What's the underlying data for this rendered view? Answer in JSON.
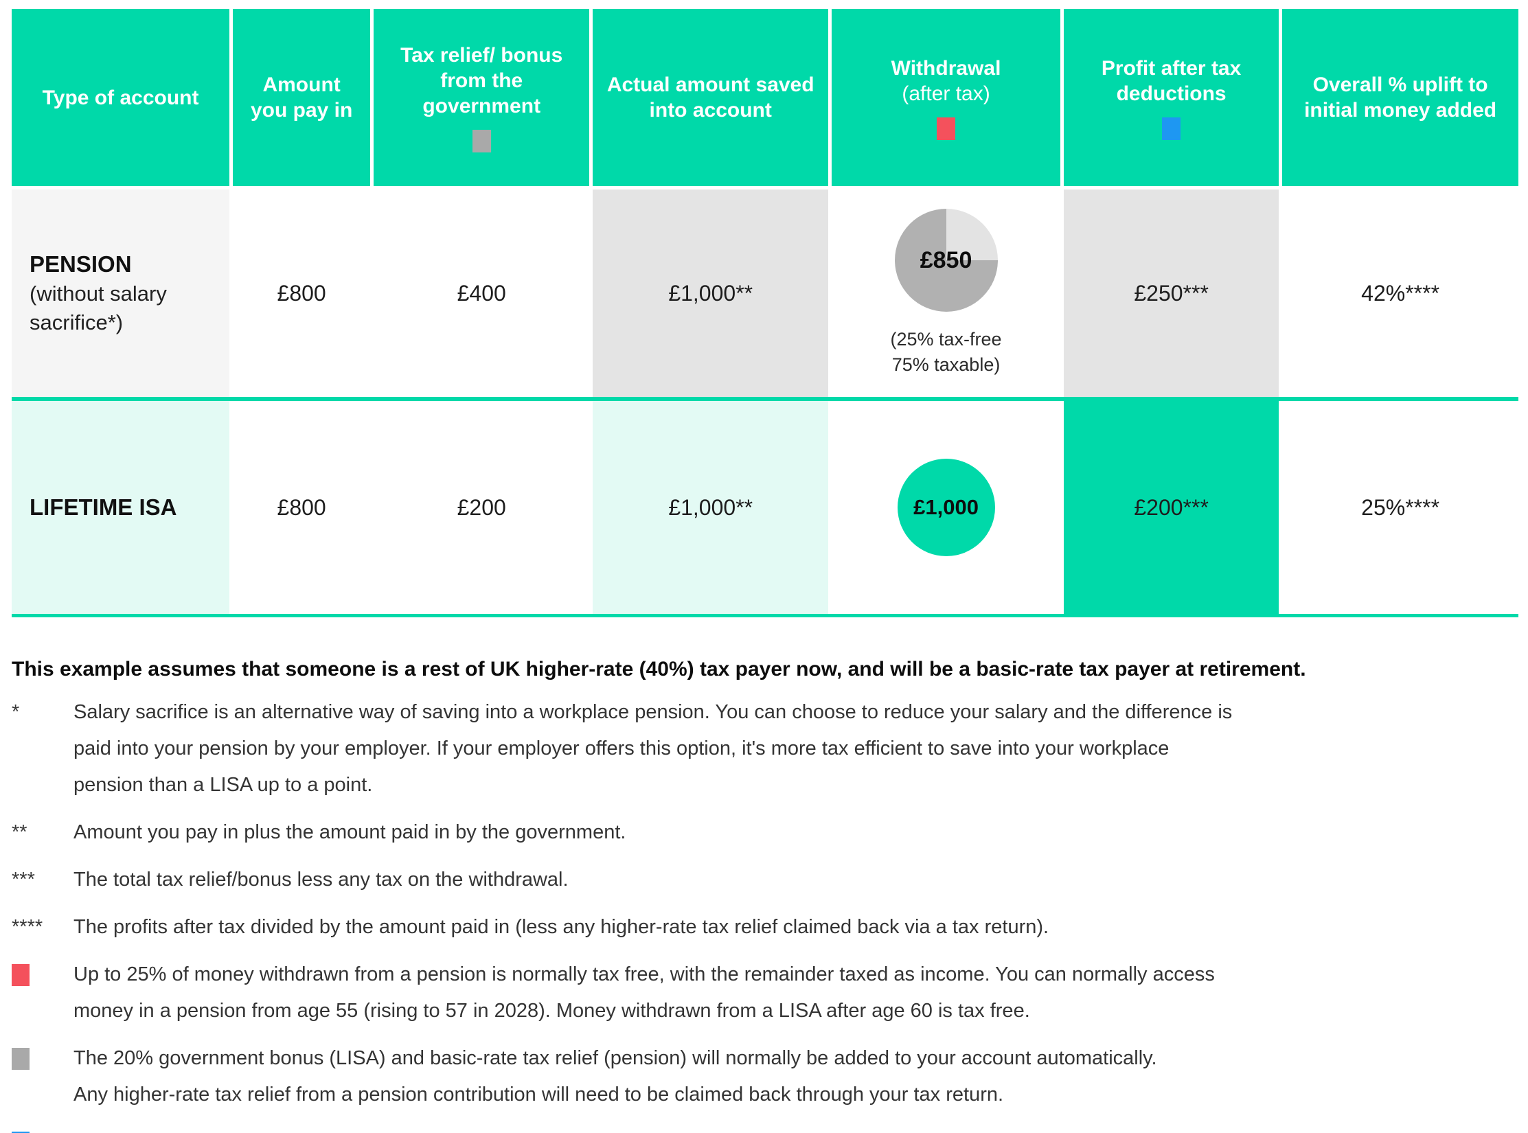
{
  "colors": {
    "teal": "#00D9A9",
    "mint_cell": "#E3FAF4",
    "grey_cell": "#E4E4E4",
    "light_cell": "#F5F5F5",
    "pie_main_grey": "#B1B1B1",
    "pie_light_grey": "#E3E3E3",
    "marker_grey": "#A9A9A9",
    "marker_red": "#F4515C",
    "marker_blue": "#1E97F2"
  },
  "table": {
    "headers": [
      {
        "label": "Type of account"
      },
      {
        "label": "Amount you pay in"
      },
      {
        "label": "Tax relief/ bonus from the government",
        "marker": "grey-square"
      },
      {
        "label": "Actual amount saved into account"
      },
      {
        "label": "Withdrawal",
        "sublabel": "(after tax)",
        "marker": "red-square"
      },
      {
        "label": "Profit after tax deductions",
        "marker": "blue-square"
      },
      {
        "label": "Overall % uplift to initial money added"
      }
    ],
    "pension": {
      "name": "PENSION",
      "name_note": "(without salary sacrifice*)",
      "pay_in": "£800",
      "tax_relief": "£400",
      "actual_saved": "£1,000**",
      "withdrawal": "£850",
      "withdrawal_note": "(25% tax-free 75% taxable)",
      "profit": "£250***",
      "uplift": "42%****"
    },
    "lisa": {
      "name": "LIFETIME ISA",
      "pay_in": "£800",
      "tax_relief": "£200",
      "actual_saved": "£1,000**",
      "withdrawal": "£1,000",
      "profit": "£200***",
      "uplift": "25%****"
    }
  },
  "notes": {
    "intro": "This example assumes that someone is a rest of UK higher-rate (40%) tax payer now, and will be a basic-rate tax payer at retirement.",
    "items": [
      {
        "marker": "*",
        "lines": [
          "Salary sacrifice is an alternative way of saving into a workplace pension. You can choose to reduce your salary and the difference is",
          "paid into your pension by your employer. If your employer offers this option, it's more tax efficient to save into your workplace",
          "pension than a LISA up to a point."
        ]
      },
      {
        "marker": "**",
        "lines": [
          "Amount you pay in plus the amount paid in by the government."
        ]
      },
      {
        "marker": "***",
        "lines": [
          "The total tax relief/bonus less any tax on the withdrawal."
        ]
      },
      {
        "marker": "****",
        "lines": [
          "The profits after tax divided by the amount paid in (less any higher-rate tax relief claimed back via a tax return)."
        ]
      },
      {
        "marker": "red-square",
        "lines": [
          "Up to 25% of money withdrawn from a pension is normally tax free, with the remainder taxed as income. You can normally access",
          "money in a pension from age 55 (rising to 57 in 2028). Money withdrawn from a LISA after age 60 is tax free."
        ]
      },
      {
        "marker": "grey-square",
        "lines": [
          "The 20% government bonus (LISA) and basic-rate tax relief (pension) will normally be added to your account automatically.",
          "Any higher-rate tax relief from a pension contribution will need to be claimed back through your tax return."
        ]
      },
      {
        "marker": "blue-square",
        "lines": [
          ""
        ]
      }
    ]
  },
  "chart_data": [
    {
      "type": "table",
      "columns": [
        "Type of account",
        "Amount you pay in",
        "Tax relief/bonus from the government",
        "Actual amount saved into account",
        "Withdrawal (after tax)",
        "Profit after tax deductions",
        "Overall % uplift to initial money added"
      ],
      "rows": [
        [
          "PENSION (without salary sacrifice*)",
          "£800",
          "£400",
          "£1,000**",
          "£850 (25% tax-free 75% taxable)",
          "£250***",
          "42%****"
        ],
        [
          "LIFETIME ISA",
          "£800",
          "£200",
          "£1,000**",
          "£1,000",
          "£200***",
          "25%****"
        ]
      ]
    },
    {
      "type": "pie",
      "labels": [
        "tax-free",
        "taxable"
      ],
      "values": [
        25,
        75
      ],
      "annotation": "£850"
    }
  ]
}
